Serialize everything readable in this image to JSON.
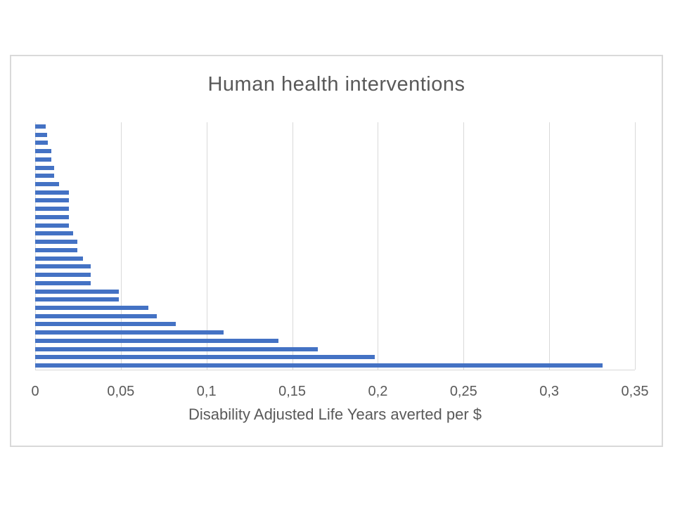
{
  "chart_data": {
    "type": "bar",
    "orientation": "horizontal",
    "title": "Human health interventions",
    "xlabel": "Disability Adjusted Life Years averted per $",
    "xlim": [
      0,
      0.35
    ],
    "x_tick_labels": [
      "0",
      "0,05",
      "0,1",
      "0,15",
      "0,2",
      "0,25",
      "0,3",
      "0,35"
    ],
    "x_tick_values": [
      0,
      0.05,
      0.1,
      0.15,
      0.2,
      0.25,
      0.3,
      0.35
    ],
    "grid": "vertical-gridlines-on",
    "legend": "none",
    "y_category_labels": "none",
    "values_top_to_bottom": [
      0.006,
      0.007,
      0.0075,
      0.0095,
      0.0095,
      0.011,
      0.011,
      0.014,
      0.0195,
      0.0195,
      0.0195,
      0.0195,
      0.0195,
      0.022,
      0.0245,
      0.0245,
      0.028,
      0.0325,
      0.0325,
      0.0325,
      0.049,
      0.049,
      0.066,
      0.071,
      0.082,
      0.11,
      0.142,
      0.165,
      0.198,
      0.331
    ],
    "colors": {
      "bar": "#4472C4",
      "gridline": "#D9D9D9",
      "text": "#595959",
      "chart_border": "#D9D9D9"
    }
  }
}
